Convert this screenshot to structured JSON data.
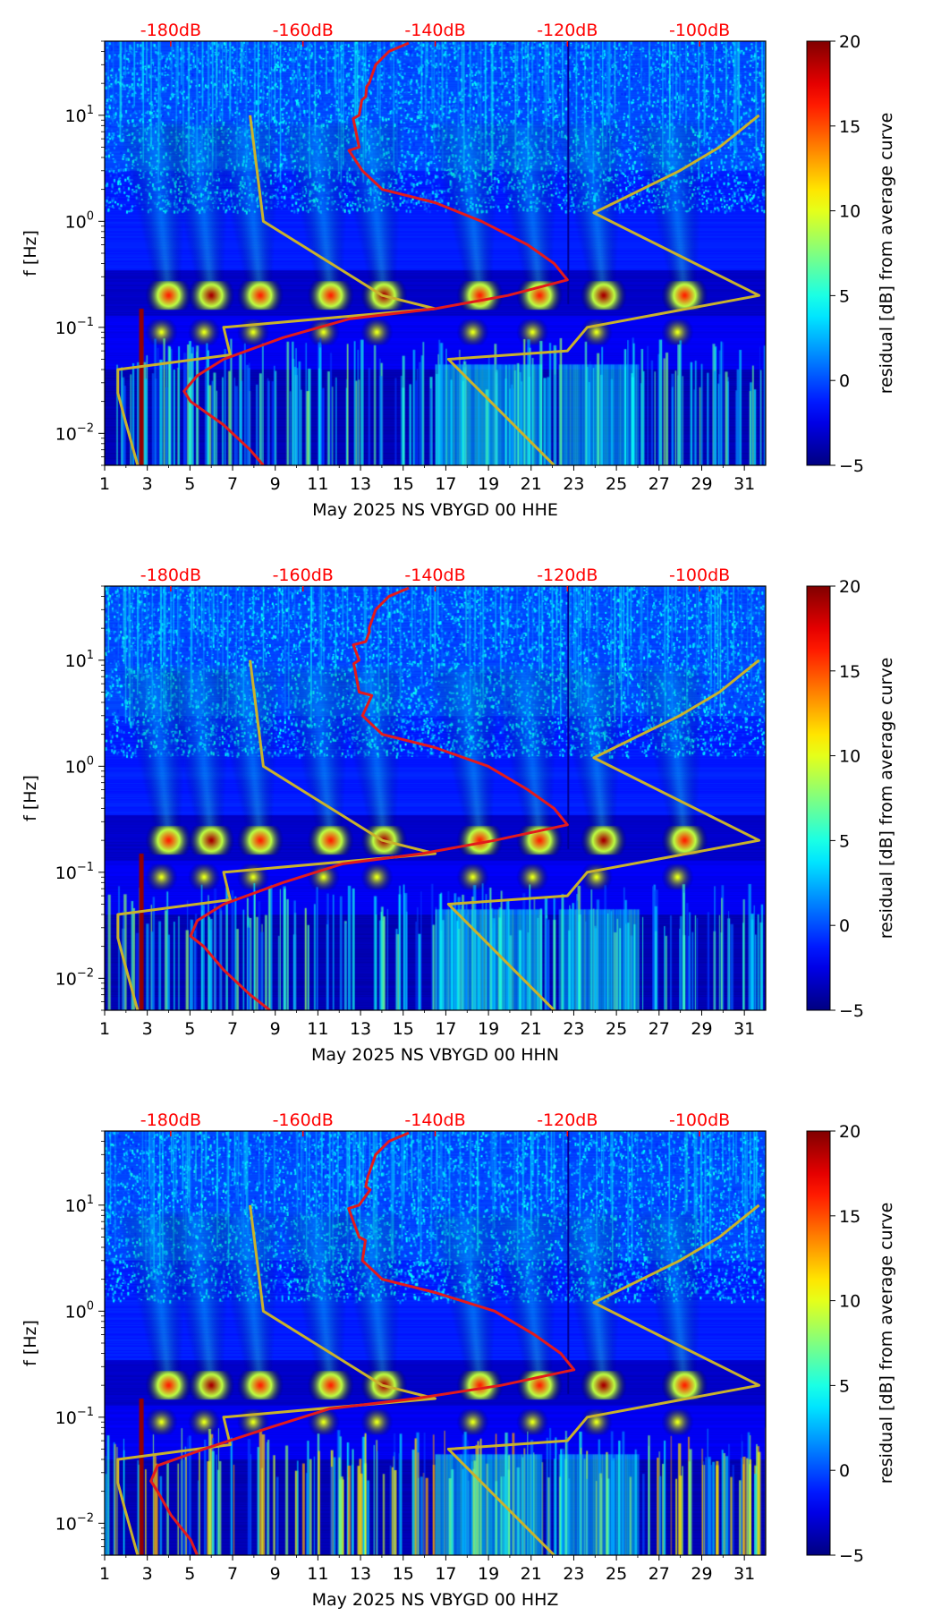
{
  "chart_data": {
    "type": "heatmap",
    "title": "",
    "colorbar": {
      "label": "residual [dB] from average curve",
      "range": [
        -5,
        20
      ],
      "ticks": [
        "20",
        "15",
        "10",
        "5",
        "0",
        "−5"
      ],
      "tick_values": [
        20,
        15,
        10,
        5,
        0,
        -5
      ],
      "colormap": "jet"
    },
    "ylabel": "f [Hz]",
    "ylim_hz": [
      0.005,
      50
    ],
    "y_ticks": [
      {
        "base": "10",
        "exp": "1",
        "value": 10
      },
      {
        "base": "10",
        "exp": "0",
        "value": 1
      },
      {
        "base": "10",
        "exp": "−1",
        "value": 0.1
      },
      {
        "base": "10",
        "exp": "−2",
        "value": 0.01
      }
    ],
    "x_ticks": [
      "1",
      "3",
      "5",
      "7",
      "9",
      "11",
      "13",
      "15",
      "17",
      "19",
      "21",
      "23",
      "25",
      "27",
      "29",
      "31"
    ],
    "xlim_day": [
      1,
      32
    ],
    "db_ticks": [
      "-180dB",
      "-160dB",
      "-140dB",
      "-120dB",
      "-100dB"
    ],
    "db_tick_values": [
      -180,
      -160,
      -140,
      -120,
      -100
    ],
    "db_range": [
      -190,
      -90
    ],
    "nlnm_curve": [
      [
        10,
        -168
      ],
      [
        1,
        -166
      ],
      [
        0.2,
        -148
      ],
      [
        0.15,
        -140
      ],
      [
        0.1,
        -172
      ],
      [
        0.055,
        -171
      ],
      [
        0.04,
        -188
      ],
      [
        0.024,
        -188
      ],
      [
        0.014,
        -187
      ],
      [
        0.005,
        -185
      ]
    ],
    "nhnm_curve": [
      [
        10,
        -91
      ],
      [
        5,
        -97
      ],
      [
        3,
        -103
      ],
      [
        1.2,
        -116
      ],
      [
        0.2,
        -91
      ],
      [
        0.1,
        -117
      ],
      [
        0.06,
        -120
      ],
      [
        0.05,
        -138
      ],
      [
        0.005,
        -122
      ]
    ],
    "panels": [
      {
        "channel": "HHE",
        "xlabel": "May 2025 NS VBYGD 00 HHE",
        "mean_curve": [
          [
            48,
            -144
          ],
          [
            40,
            -147
          ],
          [
            30,
            -149
          ],
          [
            20,
            -150
          ],
          [
            15,
            -150.5
          ],
          [
            10,
            -151.5
          ],
          [
            5,
            -151.5
          ],
          [
            3,
            -151
          ],
          [
            2,
            -148
          ],
          [
            1.5,
            -140
          ],
          [
            1,
            -133
          ],
          [
            0.6,
            -126
          ],
          [
            0.4,
            -122
          ],
          [
            0.28,
            -120
          ],
          [
            0.2,
            -129
          ],
          [
            0.15,
            -140
          ],
          [
            0.12,
            -153
          ],
          [
            0.08,
            -163
          ],
          [
            0.05,
            -172
          ],
          [
            0.035,
            -176
          ],
          [
            0.025,
            -178
          ],
          [
            0.02,
            -177
          ],
          [
            0.012,
            -172
          ],
          [
            0.007,
            -168
          ],
          [
            0.005,
            -166
          ]
        ]
      },
      {
        "channel": "HHN",
        "xlabel": "May 2025 NS VBYGD 00 HHN",
        "mean_curve": [
          [
            48,
            -144
          ],
          [
            40,
            -147
          ],
          [
            30,
            -149
          ],
          [
            20,
            -150
          ],
          [
            15,
            -150.5
          ],
          [
            10,
            -151.5
          ],
          [
            5,
            -151.5
          ],
          [
            3,
            -151
          ],
          [
            2,
            -148
          ],
          [
            1.5,
            -140
          ],
          [
            1,
            -132
          ],
          [
            0.6,
            -126
          ],
          [
            0.4,
            -122
          ],
          [
            0.28,
            -120
          ],
          [
            0.2,
            -131
          ],
          [
            0.15,
            -142
          ],
          [
            0.12,
            -154
          ],
          [
            0.08,
            -163
          ],
          [
            0.05,
            -172
          ],
          [
            0.035,
            -176
          ],
          [
            0.025,
            -177
          ],
          [
            0.02,
            -175
          ],
          [
            0.012,
            -172
          ],
          [
            0.007,
            -168
          ],
          [
            0.005,
            -165
          ]
        ]
      },
      {
        "channel": "HHZ",
        "xlabel": "May 2025 NS VBYGD 00 HHZ",
        "mean_curve": [
          [
            48,
            -144
          ],
          [
            40,
            -147
          ],
          [
            30,
            -149
          ],
          [
            20,
            -150
          ],
          [
            15,
            -150.5
          ],
          [
            10,
            -151.5
          ],
          [
            5,
            -151.5
          ],
          [
            3,
            -151
          ],
          [
            2,
            -148
          ],
          [
            1.5,
            -140
          ],
          [
            1,
            -131
          ],
          [
            0.6,
            -125
          ],
          [
            0.4,
            -121
          ],
          [
            0.28,
            -119
          ],
          [
            0.2,
            -130
          ],
          [
            0.15,
            -143
          ],
          [
            0.12,
            -156
          ],
          [
            0.08,
            -165
          ],
          [
            0.05,
            -175
          ],
          [
            0.035,
            -182
          ],
          [
            0.025,
            -183
          ],
          [
            0.02,
            -182
          ],
          [
            0.012,
            -180
          ],
          [
            0.007,
            -177
          ],
          [
            0.005,
            -176
          ]
        ]
      }
    ]
  },
  "colors": {
    "mean_curve": "#e31a1c",
    "model_curve": "#c9b22c",
    "db_text": "#ff0000",
    "background": "#00008f"
  }
}
